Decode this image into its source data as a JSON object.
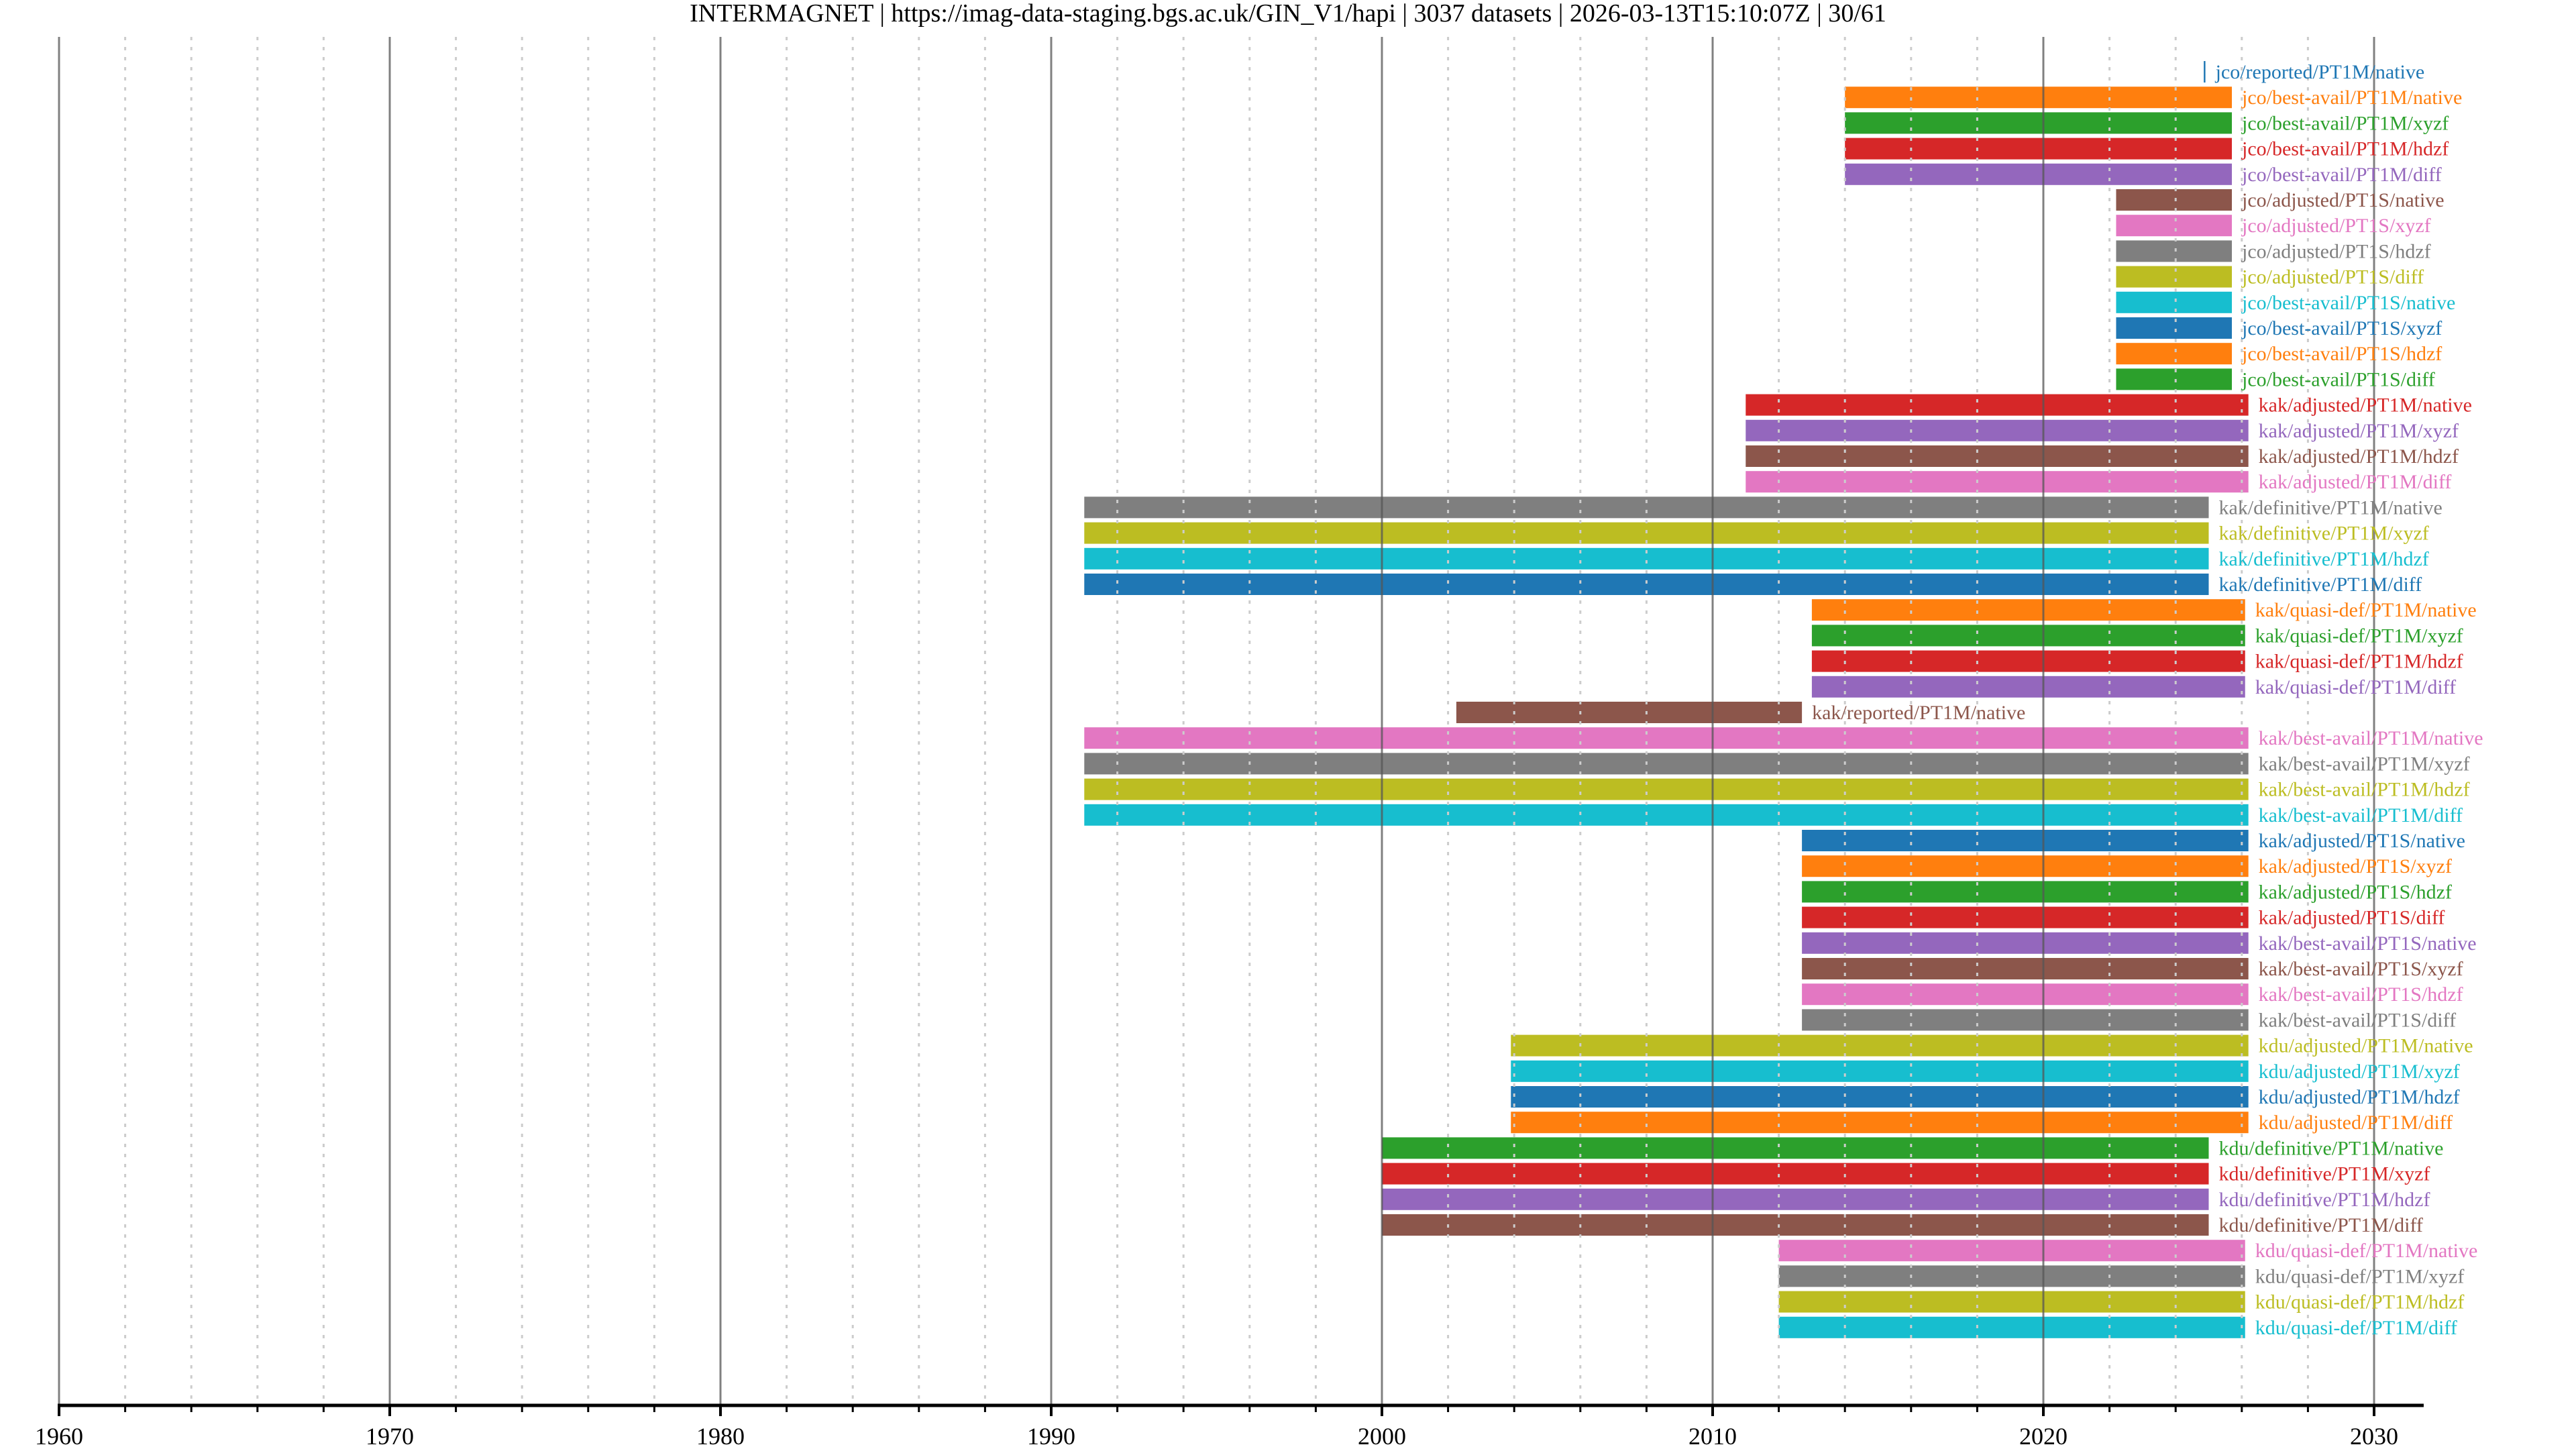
{
  "chart_data": {
    "type": "timeline-bar",
    "title": "INTERMAGNET | https://imag-data-staging.bgs.ac.uk/GIN_V1/hapi | 3037 datasets | 2026-03-13T15:10:07Z | 30/61",
    "xlabel": "",
    "ylabel": "",
    "xlim": [
      1960,
      2031.5
    ],
    "x_ticks": [
      1960,
      1970,
      1980,
      1990,
      2000,
      2010,
      2020,
      2030
    ],
    "x_tick_labels": [
      "1960",
      "1970",
      "1980",
      "1990",
      "2000",
      "2010",
      "2020",
      "2030"
    ],
    "grid": {
      "major_every_years": 10,
      "minor_every_years": 2
    },
    "colors": [
      "#1f77b4",
      "#ff7f0e",
      "#2ca02c",
      "#d62728",
      "#9467bd",
      "#8c564b",
      "#e377c2",
      "#7f7f7f",
      "#bcbd22",
      "#17becf"
    ],
    "series": [
      {
        "name": "jco/reported/PT1M/native",
        "start": 2024.85,
        "end": 2024.9
      },
      {
        "name": "jco/best-avail/PT1M/native",
        "start": 2014.0,
        "end": 2025.7
      },
      {
        "name": "jco/best-avail/PT1M/xyzf",
        "start": 2014.0,
        "end": 2025.7
      },
      {
        "name": "jco/best-avail/PT1M/hdzf",
        "start": 2014.0,
        "end": 2025.7
      },
      {
        "name": "jco/best-avail/PT1M/diff",
        "start": 2014.0,
        "end": 2025.7
      },
      {
        "name": "jco/adjusted/PT1S/native",
        "start": 2022.2,
        "end": 2025.7
      },
      {
        "name": "jco/adjusted/PT1S/xyzf",
        "start": 2022.2,
        "end": 2025.7
      },
      {
        "name": "jco/adjusted/PT1S/hdzf",
        "start": 2022.2,
        "end": 2025.7
      },
      {
        "name": "jco/adjusted/PT1S/diff",
        "start": 2022.2,
        "end": 2025.7
      },
      {
        "name": "jco/best-avail/PT1S/native",
        "start": 2022.2,
        "end": 2025.7
      },
      {
        "name": "jco/best-avail/PT1S/xyzf",
        "start": 2022.2,
        "end": 2025.7
      },
      {
        "name": "jco/best-avail/PT1S/hdzf",
        "start": 2022.2,
        "end": 2025.7
      },
      {
        "name": "jco/best-avail/PT1S/diff",
        "start": 2022.2,
        "end": 2025.7
      },
      {
        "name": "kak/adjusted/PT1M/native",
        "start": 2011.0,
        "end": 2026.2
      },
      {
        "name": "kak/adjusted/PT1M/xyzf",
        "start": 2011.0,
        "end": 2026.2
      },
      {
        "name": "kak/adjusted/PT1M/hdzf",
        "start": 2011.0,
        "end": 2026.2
      },
      {
        "name": "kak/adjusted/PT1M/diff",
        "start": 2011.0,
        "end": 2026.2
      },
      {
        "name": "kak/definitive/PT1M/native",
        "start": 1991.0,
        "end": 2025.0
      },
      {
        "name": "kak/definitive/PT1M/xyzf",
        "start": 1991.0,
        "end": 2025.0
      },
      {
        "name": "kak/definitive/PT1M/hdzf",
        "start": 1991.0,
        "end": 2025.0
      },
      {
        "name": "kak/definitive/PT1M/diff",
        "start": 1991.0,
        "end": 2025.0
      },
      {
        "name": "kak/quasi-def/PT1M/native",
        "start": 2013.0,
        "end": 2026.1
      },
      {
        "name": "kak/quasi-def/PT1M/xyzf",
        "start": 2013.0,
        "end": 2026.1
      },
      {
        "name": "kak/quasi-def/PT1M/hdzf",
        "start": 2013.0,
        "end": 2026.1
      },
      {
        "name": "kak/quasi-def/PT1M/diff",
        "start": 2013.0,
        "end": 2026.1
      },
      {
        "name": "kak/reported/PT1M/native",
        "start": 2002.25,
        "end": 2012.7
      },
      {
        "name": "kak/best-avail/PT1M/native",
        "start": 1991.0,
        "end": 2026.2
      },
      {
        "name": "kak/best-avail/PT1M/xyzf",
        "start": 1991.0,
        "end": 2026.2
      },
      {
        "name": "kak/best-avail/PT1M/hdzf",
        "start": 1991.0,
        "end": 2026.2
      },
      {
        "name": "kak/best-avail/PT1M/diff",
        "start": 1991.0,
        "end": 2026.2
      },
      {
        "name": "kak/adjusted/PT1S/native",
        "start": 2012.7,
        "end": 2026.2
      },
      {
        "name": "kak/adjusted/PT1S/xyzf",
        "start": 2012.7,
        "end": 2026.2
      },
      {
        "name": "kak/adjusted/PT1S/hdzf",
        "start": 2012.7,
        "end": 2026.2
      },
      {
        "name": "kak/adjusted/PT1S/diff",
        "start": 2012.7,
        "end": 2026.2
      },
      {
        "name": "kak/best-avail/PT1S/native",
        "start": 2012.7,
        "end": 2026.2
      },
      {
        "name": "kak/best-avail/PT1S/xyzf",
        "start": 2012.7,
        "end": 2026.2
      },
      {
        "name": "kak/best-avail/PT1S/hdzf",
        "start": 2012.7,
        "end": 2026.2
      },
      {
        "name": "kak/best-avail/PT1S/diff",
        "start": 2012.7,
        "end": 2026.2
      },
      {
        "name": "kdu/adjusted/PT1M/native",
        "start": 2003.9,
        "end": 2026.2
      },
      {
        "name": "kdu/adjusted/PT1M/xyzf",
        "start": 2003.9,
        "end": 2026.2
      },
      {
        "name": "kdu/adjusted/PT1M/hdzf",
        "start": 2003.9,
        "end": 2026.2
      },
      {
        "name": "kdu/adjusted/PT1M/diff",
        "start": 2003.9,
        "end": 2026.2
      },
      {
        "name": "kdu/definitive/PT1M/native",
        "start": 2000.0,
        "end": 2025.0
      },
      {
        "name": "kdu/definitive/PT1M/xyzf",
        "start": 2000.0,
        "end": 2025.0
      },
      {
        "name": "kdu/definitive/PT1M/hdzf",
        "start": 2000.0,
        "end": 2025.0
      },
      {
        "name": "kdu/definitive/PT1M/diff",
        "start": 2000.0,
        "end": 2025.0
      },
      {
        "name": "kdu/quasi-def/PT1M/native",
        "start": 2012.0,
        "end": 2026.1
      },
      {
        "name": "kdu/quasi-def/PT1M/xyzf",
        "start": 2012.0,
        "end": 2026.1
      },
      {
        "name": "kdu/quasi-def/PT1M/hdzf",
        "start": 2012.0,
        "end": 2026.1
      },
      {
        "name": "kdu/quasi-def/PT1M/diff",
        "start": 2012.0,
        "end": 2026.1
      }
    ]
  }
}
